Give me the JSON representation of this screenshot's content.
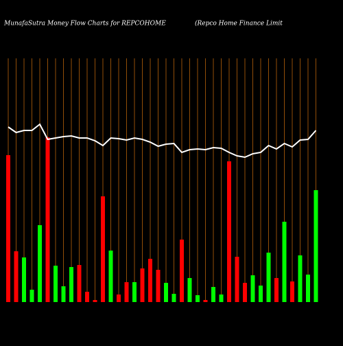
{
  "chart_data": {
    "type": "bar",
    "title": "MunafaSutra  Money Flow  Charts for REPCOHOME",
    "subtitle": "(Repco  Home  Finance  Limit",
    "categories": [
      null,
      null,
      null,
      null,
      null,
      null,
      null,
      null,
      null,
      null,
      null,
      null,
      null,
      null,
      null,
      null,
      null,
      null,
      null,
      null,
      null,
      null,
      null,
      null,
      null,
      null,
      null,
      null,
      null,
      null,
      null,
      null,
      null,
      null,
      null,
      null,
      null,
      null,
      null,
      null
    ],
    "values": [
      214,
      74,
      65,
      18,
      112,
      240,
      53,
      23,
      51,
      54,
      15,
      3,
      154,
      75,
      11,
      29,
      29,
      49,
      63,
      47,
      28,
      12,
      91,
      35,
      10,
      3,
      22,
      11,
      205,
      66,
      28,
      39,
      24,
      72,
      35,
      117,
      30,
      68,
      40,
      163
    ],
    "colors": [
      "#ff0000",
      "#ff0000",
      "#00ff00",
      "#00ff00",
      "#00ff00",
      "#ff0000",
      "#00ff00",
      "#00ff00",
      "#00ff00",
      "#ff0000",
      "#ff0000",
      "#ff0000",
      "#ff0000",
      "#00ff00",
      "#ff0000",
      "#ff0000",
      "#00ff00",
      "#ff0000",
      "#ff0000",
      "#ff0000",
      "#00ff00",
      "#00ff00",
      "#ff0000",
      "#00ff00",
      "#00ff00",
      "#ff0000",
      "#00ff00",
      "#00ff00",
      "#ff0000",
      "#ff0000",
      "#ff0000",
      "#00ff00",
      "#00ff00",
      "#00ff00",
      "#ff0000",
      "#00ff00",
      "#ff0000",
      "#00ff00",
      "#00ff00",
      "#00ff00"
    ],
    "line": {
      "color": "#ffffff",
      "values": [
        255,
        247,
        250,
        250,
        259,
        237,
        239,
        241,
        242,
        239,
        239,
        235,
        228,
        239,
        238,
        236,
        239,
        237,
        233,
        227,
        230,
        231,
        218,
        222,
        223,
        222,
        225,
        224,
        218,
        213,
        211,
        216,
        218,
        228,
        223,
        231,
        226,
        236,
        237,
        250
      ]
    },
    "ylim": [
      0,
      440
    ],
    "grid_color": "#b8620a"
  }
}
